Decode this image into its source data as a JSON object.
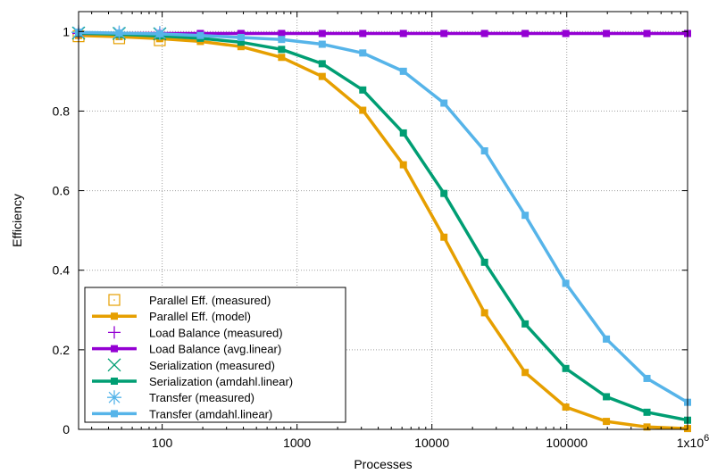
{
  "chart_data": {
    "type": "line",
    "xlabel": "Processes",
    "ylabel": "Efficiency",
    "x_scale": "log",
    "xlim": [
      24,
      786432
    ],
    "ylim": [
      0,
      1.05
    ],
    "x_ticks": [
      {
        "value": 100,
        "label": "100"
      },
      {
        "value": 1000,
        "label": "1000"
      },
      {
        "value": 10000,
        "label": "10000"
      },
      {
        "value": 100000,
        "label": "100000"
      }
    ],
    "x_end_label": {
      "base": "1x10",
      "exp": "6"
    },
    "y_ticks": [
      {
        "value": 0,
        "label": "0"
      },
      {
        "value": 0.2,
        "label": "0.2"
      },
      {
        "value": 0.4,
        "label": "0.4"
      },
      {
        "value": 0.6,
        "label": "0.6"
      },
      {
        "value": 0.8,
        "label": "0.8"
      },
      {
        "value": 1,
        "label": "1"
      }
    ],
    "grid": true,
    "legend_position": "bottom-left",
    "series": [
      {
        "name": "Parallel Eff. (measured)",
        "kind": "points",
        "marker": "open-square",
        "color": "#E69F00",
        "x": [
          24,
          48,
          96
        ],
        "y": [
          0.988,
          0.983,
          0.978
        ]
      },
      {
        "name": "Parallel Eff. (model)",
        "kind": "line",
        "marker": "filled-square",
        "color": "#E69F00",
        "x": [
          24,
          48,
          96,
          192,
          384,
          768,
          1536,
          3072,
          6144,
          12288,
          24576,
          49152,
          98304,
          196608,
          393216,
          786432
        ],
        "y": [
          0.99,
          0.987,
          0.982,
          0.975,
          0.962,
          0.935,
          0.887,
          0.802,
          0.665,
          0.483,
          0.293,
          0.143,
          0.056,
          0.02,
          0.006,
          0.002
        ]
      },
      {
        "name": "Load Balance (measured)",
        "kind": "points",
        "marker": "plus",
        "color": "#9400D3",
        "x": [
          24,
          48,
          96
        ],
        "y": [
          0.995,
          0.995,
          0.995
        ]
      },
      {
        "name": "Load Balance (avg.linear)",
        "kind": "line",
        "marker": "filled-square",
        "color": "#9400D3",
        "x": [
          24,
          48,
          96,
          192,
          384,
          768,
          1536,
          3072,
          6144,
          12288,
          24576,
          49152,
          98304,
          196608,
          393216,
          786432
        ],
        "y": [
          0.995,
          0.995,
          0.995,
          0.995,
          0.995,
          0.995,
          0.995,
          0.995,
          0.995,
          0.995,
          0.995,
          0.995,
          0.995,
          0.995,
          0.995,
          0.995
        ]
      },
      {
        "name": "Serialization (measured)",
        "kind": "points",
        "marker": "cross",
        "color": "#009E73",
        "x": [
          24,
          48,
          96
        ],
        "y": [
          0.996,
          0.995,
          0.994
        ]
      },
      {
        "name": "Serialization (amdahl.linear)",
        "kind": "line",
        "marker": "filled-square",
        "color": "#009E73",
        "x": [
          24,
          48,
          96,
          192,
          384,
          768,
          1536,
          3072,
          6144,
          12288,
          24576,
          49152,
          98304,
          196608,
          393216,
          786432
        ],
        "y": [
          0.996,
          0.993,
          0.989,
          0.983,
          0.973,
          0.955,
          0.919,
          0.853,
          0.745,
          0.593,
          0.42,
          0.265,
          0.153,
          0.082,
          0.043,
          0.023
        ]
      },
      {
        "name": "Transfer (measured)",
        "kind": "points",
        "marker": "star",
        "color": "#56B4E9",
        "x": [
          24,
          48,
          96
        ],
        "y": [
          0.998,
          0.997,
          0.996
        ]
      },
      {
        "name": "Transfer (amdahl.linear)",
        "kind": "line",
        "marker": "filled-square",
        "color": "#56B4E9",
        "x": [
          24,
          48,
          96,
          192,
          384,
          768,
          1536,
          3072,
          6144,
          12288,
          24576,
          49152,
          98304,
          196608,
          393216,
          786432
        ],
        "y": [
          0.998,
          0.996,
          0.994,
          0.99,
          0.985,
          0.98,
          0.968,
          0.946,
          0.9,
          0.82,
          0.7,
          0.538,
          0.367,
          0.227,
          0.128,
          0.068
        ]
      }
    ]
  }
}
